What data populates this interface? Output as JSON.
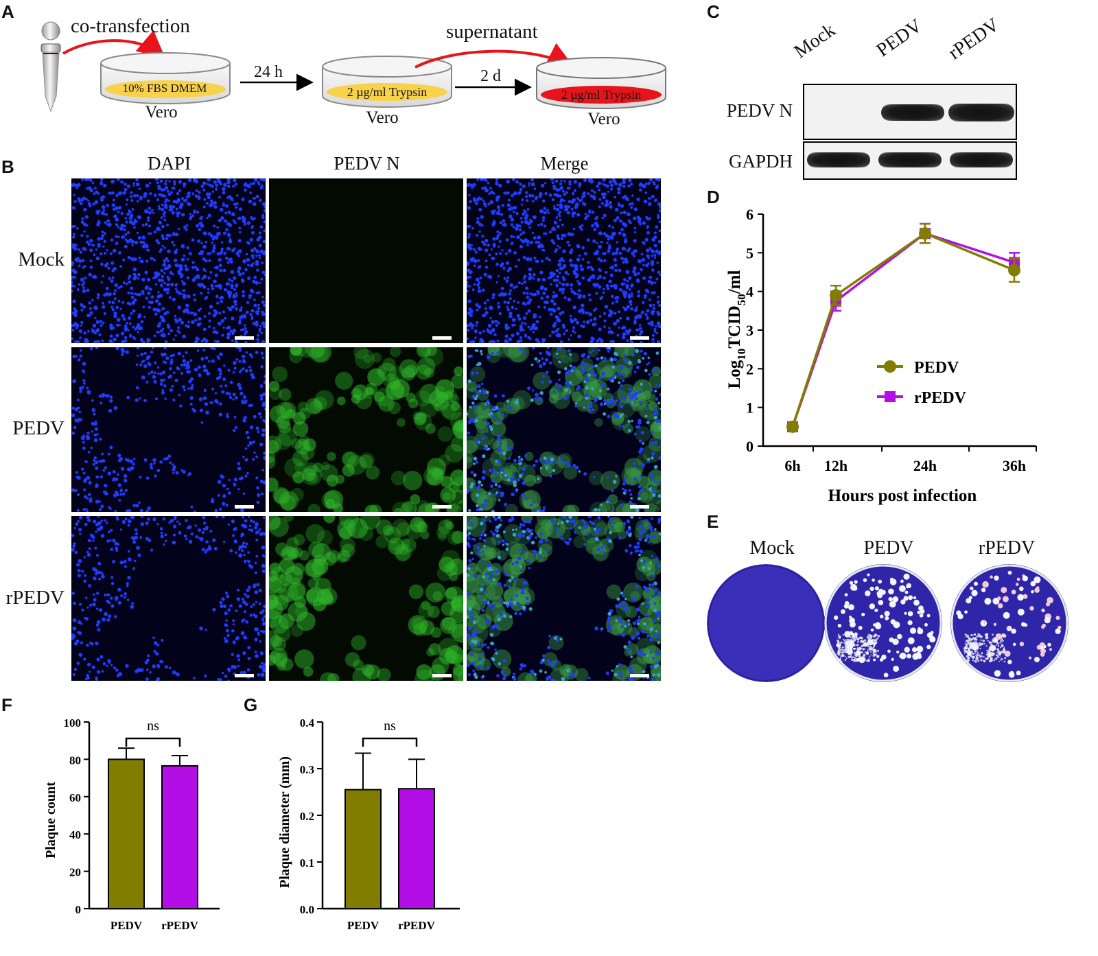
{
  "panels": {
    "A": "A",
    "B": "B",
    "C": "C",
    "D": "D",
    "E": "E",
    "F": "F",
    "G": "G"
  },
  "panel_a": {
    "cotransfection": "co-transfection",
    "dish1_medium": "10% FBS DMEM",
    "dish1_label": "Vero",
    "arrow1_label": "24 h",
    "dish2_medium": "2 µg/ml Trypsin",
    "dish2_label": "Vero",
    "supernatant": "supernatant",
    "arrow2_label": "2 d",
    "dish3_medium": "2 µg/ml Trypsin",
    "dish3_label": "Vero",
    "colors": {
      "yellow": "#f7d24a",
      "red": "#e8141b",
      "arrow_red": "#e8141b"
    }
  },
  "panel_b": {
    "columns": [
      "DAPI",
      "PEDV N",
      "Merge"
    ],
    "rows": [
      "Mock",
      "PEDV",
      "rPEDV"
    ]
  },
  "panel_c": {
    "lanes": [
      "Mock",
      "PEDV",
      "rPEDV"
    ],
    "blot_rows": [
      "PEDV N",
      "GAPDH"
    ]
  },
  "panel_e": {
    "plates": [
      "Mock",
      "PEDV",
      "rPEDV"
    ]
  },
  "colors": {
    "pedv": "#807d00",
    "rpedv": "#b40ee6",
    "dapi_blue": "#1f3cff",
    "green": "#2fb52a"
  },
  "chart_data": [
    {
      "id": "D",
      "type": "line",
      "x": [
        "6h",
        "12h",
        "24h",
        "36h"
      ],
      "x_hours": [
        6,
        12,
        24,
        36
      ],
      "series": [
        {
          "name": "PEDV",
          "values": [
            0.5,
            3.9,
            5.5,
            4.55
          ],
          "errors": [
            0.05,
            0.25,
            0.25,
            0.3
          ],
          "marker": "circle"
        },
        {
          "name": "rPEDV",
          "values": [
            0.5,
            3.75,
            5.5,
            4.75
          ],
          "errors": [
            0.05,
            0.25,
            0.25,
            0.25
          ],
          "marker": "square"
        }
      ],
      "ylabel_main": "Log",
      "ylabel_sub": "10",
      "ylabel_mid": "TCID",
      "ylabel_sub2": "50",
      "ylabel_end": "/ml",
      "xlabel": "Hours post infection",
      "ylim": [
        0,
        6
      ],
      "yticks": [
        "0",
        "1",
        "2",
        "3",
        "4",
        "5",
        "6"
      ],
      "legend": "right"
    },
    {
      "id": "F",
      "type": "bar",
      "categories": [
        "PEDV",
        "rPEDV"
      ],
      "values": [
        80,
        76.5
      ],
      "errors": [
        6,
        5.5
      ],
      "ylabel": "Plaque count",
      "ylim": [
        0,
        100
      ],
      "yticks": [
        "0",
        "20",
        "40",
        "60",
        "80",
        "100"
      ],
      "annotation": "ns"
    },
    {
      "id": "G",
      "type": "bar",
      "categories": [
        "PEDV",
        "rPEDV"
      ],
      "values": [
        0.255,
        0.257
      ],
      "errors": [
        0.078,
        0.063
      ],
      "ylabel": "Plaque diameter (mm)",
      "ylim": [
        0,
        0.4
      ],
      "yticks": [
        "0.0",
        "0.1",
        "0.2",
        "0.3",
        "0.4"
      ],
      "annotation": "ns"
    }
  ]
}
